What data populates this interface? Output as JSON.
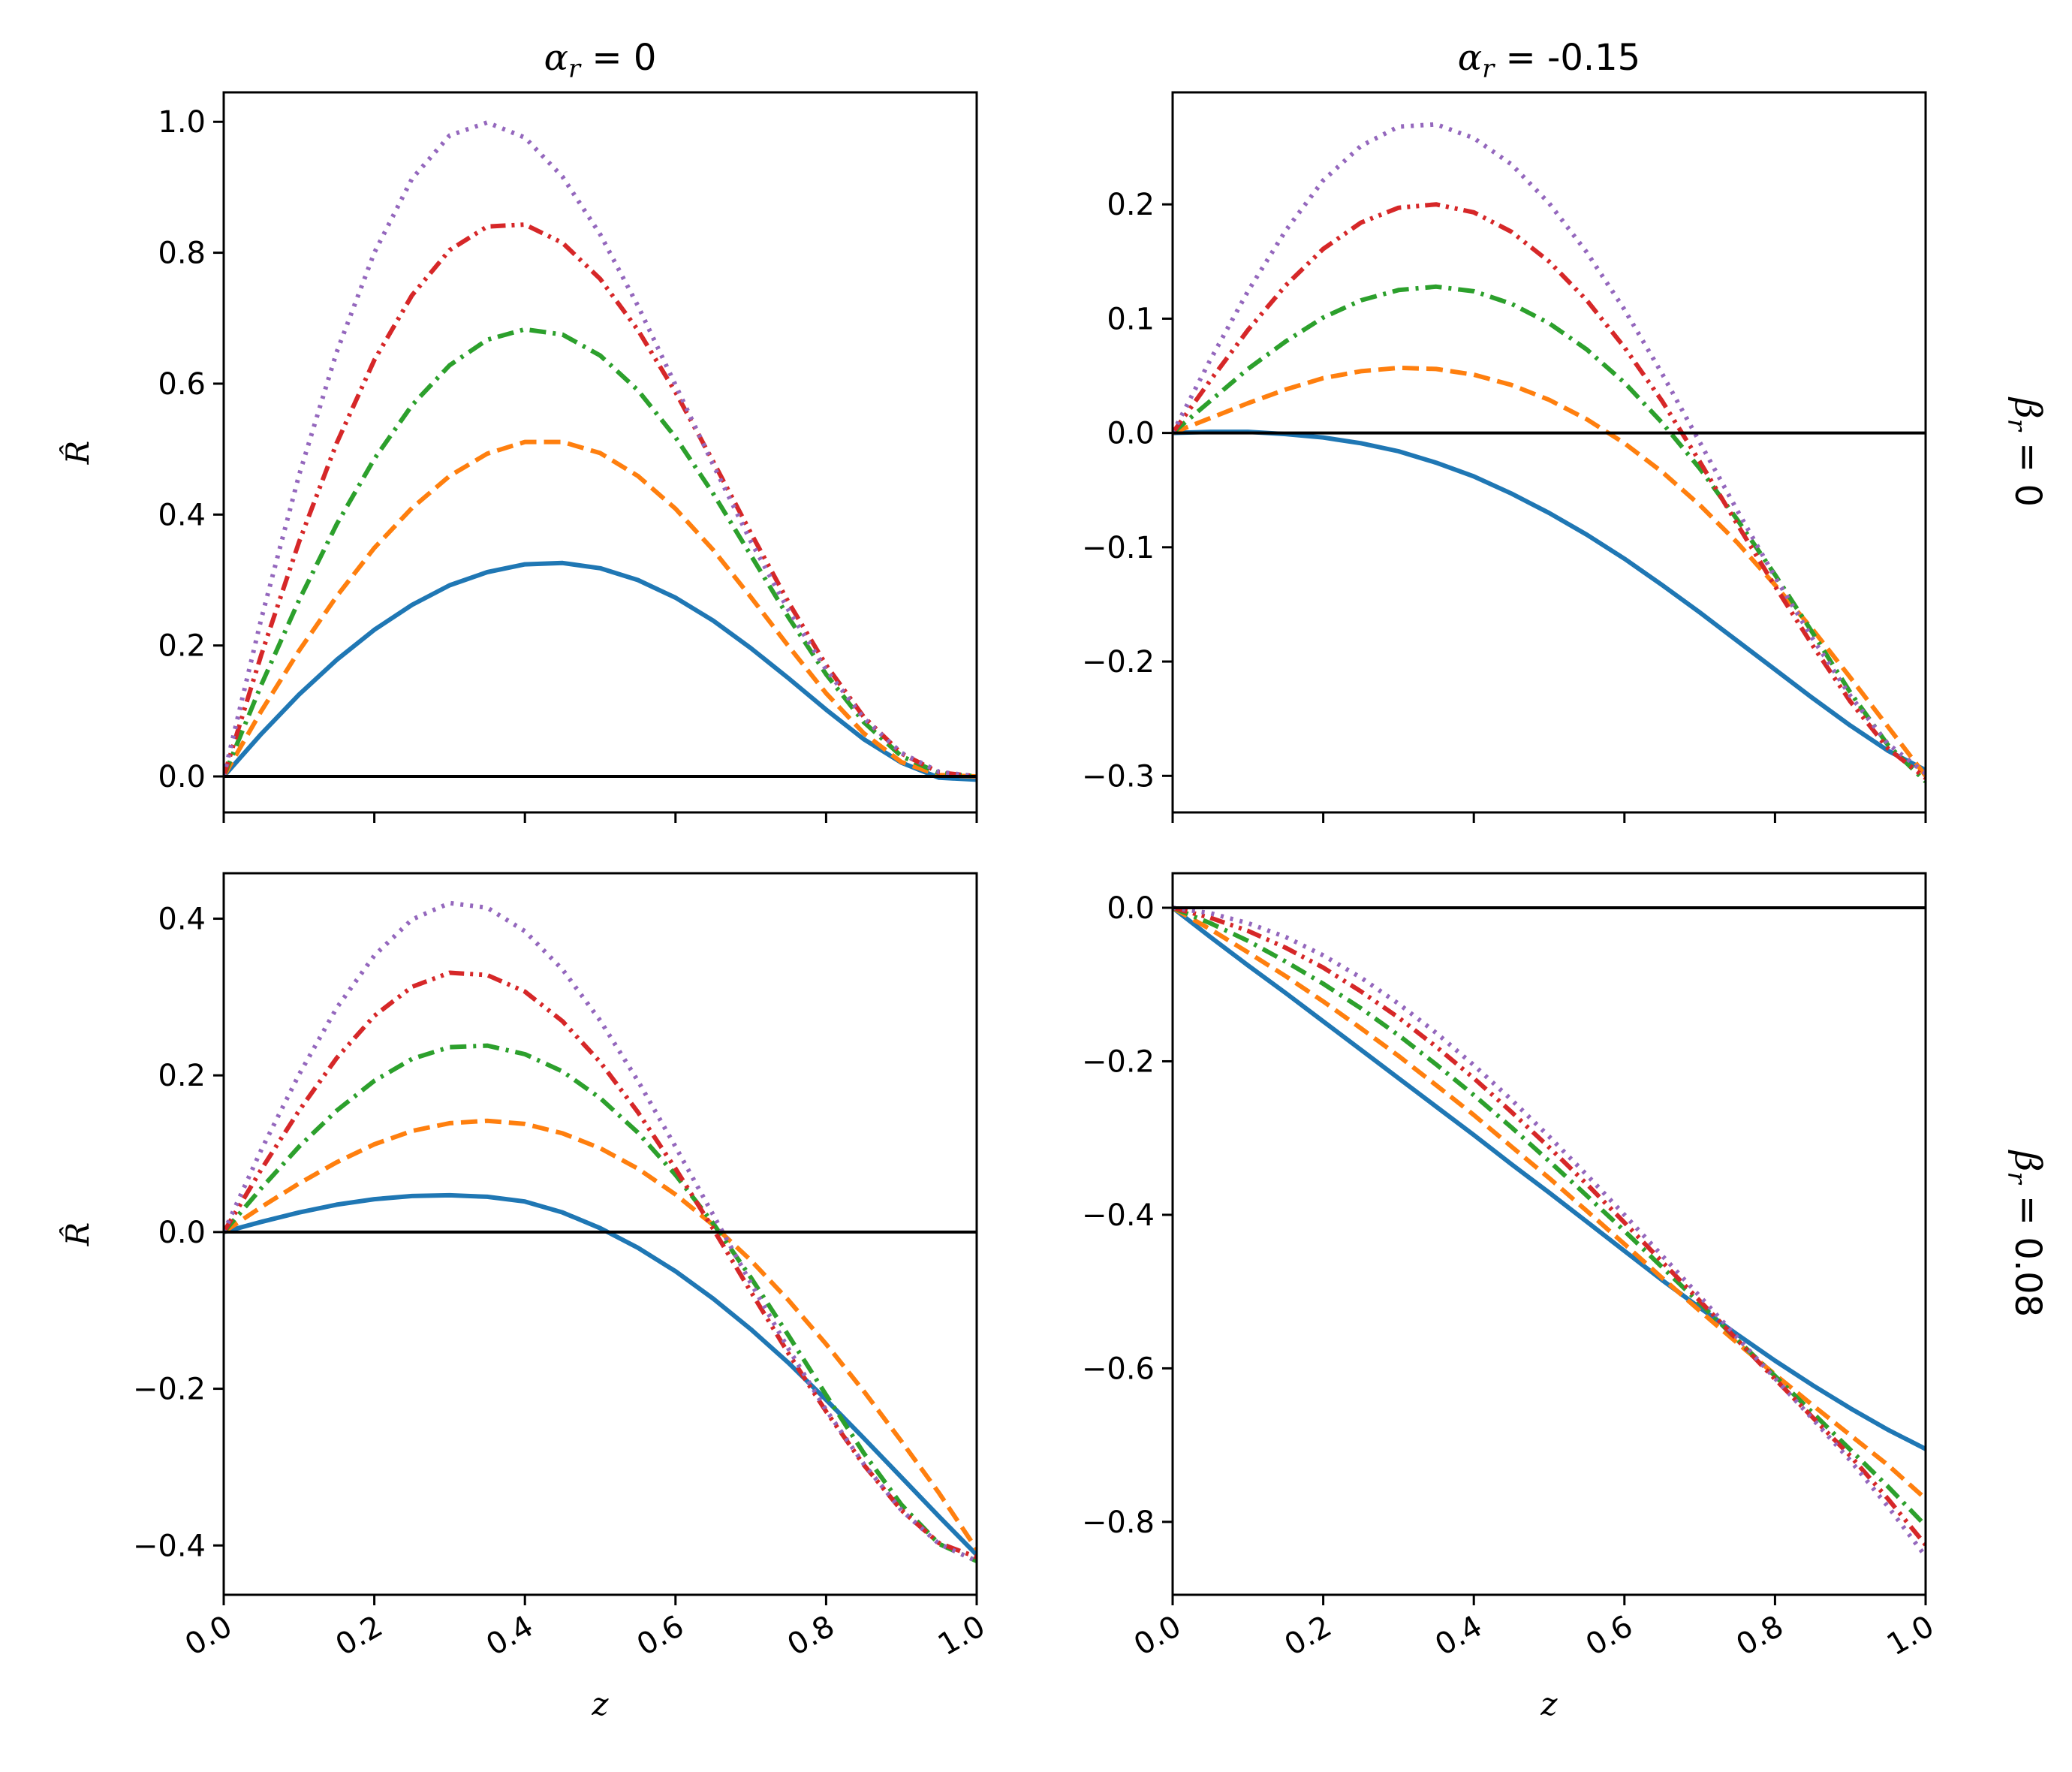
{
  "chart_data": [
    {
      "type": "line",
      "title": "α_r = 0",
      "title_parts": {
        "symbol": "α",
        "sub": "r",
        "rest": " = 0"
      },
      "xlabel": "z",
      "ylabel": "R̂",
      "xlim": [
        0,
        1
      ],
      "ylim": [
        -0.055,
        1.045
      ],
      "xticks": [
        "",
        "",
        "",
        "",
        "",
        ""
      ],
      "yticks": [
        0.0,
        0.2,
        0.4,
        0.6,
        0.8,
        1.0
      ],
      "ytick_labels": [
        "0.0",
        "0.2",
        "0.4",
        "0.6",
        "0.8",
        "1.0"
      ],
      "zero_line": true,
      "x": [
        0.0,
        0.05,
        0.1,
        0.15,
        0.2,
        0.25,
        0.3,
        0.35,
        0.4,
        0.45,
        0.5,
        0.55,
        0.6,
        0.65,
        0.7,
        0.75,
        0.8,
        0.85,
        0.9,
        0.95,
        1.0
      ],
      "series": [
        {
          "style": "solid",
          "color": "#1f77b4",
          "values": [
            0.0,
            0.065,
            0.125,
            0.178,
            0.224,
            0.262,
            0.292,
            0.312,
            0.324,
            0.326,
            0.318,
            0.3,
            0.273,
            0.238,
            0.196,
            0.15,
            0.102,
            0.057,
            0.021,
            -0.002,
            -0.005
          ]
        },
        {
          "style": "dashed",
          "color": "#ff7f0e",
          "values": [
            0.0,
            0.1,
            0.192,
            0.275,
            0.349,
            0.41,
            0.459,
            0.493,
            0.511,
            0.511,
            0.494,
            0.459,
            0.409,
            0.346,
            0.274,
            0.199,
            0.127,
            0.066,
            0.022,
            0.002,
            0.0
          ]
        },
        {
          "style": "dashdot",
          "color": "#2ca02c",
          "values": [
            0.0,
            0.14,
            0.269,
            0.385,
            0.485,
            0.567,
            0.628,
            0.667,
            0.683,
            0.675,
            0.643,
            0.59,
            0.518,
            0.432,
            0.338,
            0.243,
            0.156,
            0.083,
            0.031,
            0.005,
            0.0
          ]
        },
        {
          "style": "dashdotdot",
          "color": "#d62728",
          "values": [
            0.0,
            0.186,
            0.358,
            0.509,
            0.636,
            0.735,
            0.804,
            0.84,
            0.843,
            0.815,
            0.76,
            0.682,
            0.587,
            0.481,
            0.372,
            0.266,
            0.17,
            0.091,
            0.035,
            0.006,
            0.0
          ]
        },
        {
          "style": "dotted",
          "color": "#9467bd",
          "values": [
            0.0,
            0.241,
            0.46,
            0.648,
            0.8,
            0.913,
            0.979,
            0.999,
            0.976,
            0.916,
            0.828,
            0.719,
            0.598,
            0.476,
            0.359,
            0.254,
            0.163,
            0.089,
            0.036,
            0.007,
            0.0
          ]
        }
      ]
    },
    {
      "type": "line",
      "title": "α_r = -0.15",
      "title_parts": {
        "symbol": "α",
        "sub": "r",
        "rest": " = -0.15"
      },
      "xlabel": "",
      "ylabel": "",
      "xlim": [
        0,
        1
      ],
      "ylim": [
        -0.332,
        0.298
      ],
      "xticks": [
        "",
        "",
        "",
        "",
        "",
        ""
      ],
      "yticks": [
        -0.3,
        -0.2,
        -0.1,
        0.0,
        0.1,
        0.2
      ],
      "ytick_labels": [
        "−0.3",
        "−0.2",
        "−0.1",
        "0.0",
        "0.1",
        "0.2"
      ],
      "zero_line": true,
      "row_label": "β_r = 0",
      "row_label_parts": {
        "symbol": "β",
        "sub": "r",
        "rest": " = 0"
      },
      "x": [
        0.0,
        0.05,
        0.1,
        0.15,
        0.2,
        0.25,
        0.3,
        0.35,
        0.4,
        0.45,
        0.5,
        0.55,
        0.6,
        0.65,
        0.7,
        0.75,
        0.8,
        0.85,
        0.9,
        0.95,
        1.0
      ],
      "series": [
        {
          "style": "solid",
          "color": "#1f77b4",
          "values": [
            0.0,
            0.001,
            0.001,
            -0.001,
            -0.004,
            -0.009,
            -0.016,
            -0.026,
            -0.038,
            -0.053,
            -0.07,
            -0.089,
            -0.11,
            -0.133,
            -0.157,
            -0.182,
            -0.207,
            -0.232,
            -0.256,
            -0.278,
            -0.295
          ]
        },
        {
          "style": "dashed",
          "color": "#ff7f0e",
          "values": [
            0.0,
            0.013,
            0.026,
            0.038,
            0.048,
            0.054,
            0.057,
            0.056,
            0.051,
            0.042,
            0.029,
            0.012,
            -0.009,
            -0.034,
            -0.063,
            -0.096,
            -0.133,
            -0.172,
            -0.214,
            -0.257,
            -0.3
          ]
        },
        {
          "style": "dashdot",
          "color": "#2ca02c",
          "values": [
            0.0,
            0.028,
            0.056,
            0.08,
            0.101,
            0.116,
            0.125,
            0.128,
            0.124,
            0.113,
            0.096,
            0.073,
            0.044,
            0.009,
            -0.031,
            -0.076,
            -0.124,
            -0.175,
            -0.227,
            -0.273,
            -0.305
          ]
        },
        {
          "style": "dashdotdot",
          "color": "#d62728",
          "values": [
            0.0,
            0.046,
            0.09,
            0.129,
            0.161,
            0.184,
            0.197,
            0.2,
            0.193,
            0.176,
            0.15,
            0.116,
            0.075,
            0.028,
            -0.025,
            -0.08,
            -0.134,
            -0.186,
            -0.235,
            -0.276,
            -0.302
          ]
        },
        {
          "style": "dotted",
          "color": "#9467bd",
          "values": [
            0.0,
            0.064,
            0.124,
            0.177,
            0.221,
            0.251,
            0.268,
            0.27,
            0.258,
            0.235,
            0.201,
            0.158,
            0.108,
            0.052,
            -0.008,
            -0.068,
            -0.126,
            -0.18,
            -0.23,
            -0.272,
            -0.298
          ]
        }
      ]
    },
    {
      "type": "line",
      "title": "",
      "xlabel": "z",
      "ylabel": "R̂",
      "xlim": [
        0,
        1
      ],
      "ylim": [
        -0.463,
        0.458
      ],
      "xticks": [
        "0.0",
        "0.2",
        "0.4",
        "0.6",
        "0.8",
        "1.0"
      ],
      "yticks": [
        -0.4,
        -0.2,
        0.0,
        0.2,
        0.4
      ],
      "ytick_labels": [
        "−0.4",
        "−0.2",
        "0.0",
        "0.2",
        "0.4"
      ],
      "zero_line": true,
      "x": [
        0.0,
        0.05,
        0.1,
        0.15,
        0.2,
        0.25,
        0.3,
        0.35,
        0.4,
        0.45,
        0.5,
        0.55,
        0.6,
        0.65,
        0.7,
        0.75,
        0.8,
        0.85,
        0.9,
        0.95,
        1.0
      ],
      "series": [
        {
          "style": "solid",
          "color": "#1f77b4",
          "values": [
            0.0,
            0.013,
            0.025,
            0.035,
            0.042,
            0.046,
            0.047,
            0.045,
            0.039,
            0.025,
            0.005,
            -0.02,
            -0.05,
            -0.085,
            -0.124,
            -0.167,
            -0.214,
            -0.263,
            -0.313,
            -0.363,
            -0.412
          ]
        },
        {
          "style": "dashed",
          "color": "#ff7f0e",
          "values": [
            0.0,
            0.032,
            0.062,
            0.089,
            0.112,
            0.129,
            0.139,
            0.142,
            0.138,
            0.126,
            0.107,
            0.081,
            0.048,
            0.009,
            -0.036,
            -0.087,
            -0.143,
            -0.203,
            -0.267,
            -0.333,
            -0.405
          ]
        },
        {
          "style": "dashdot",
          "color": "#2ca02c",
          "values": [
            0.0,
            0.056,
            0.109,
            0.155,
            0.193,
            0.221,
            0.236,
            0.238,
            0.227,
            0.205,
            0.171,
            0.127,
            0.073,
            0.011,
            -0.058,
            -0.132,
            -0.208,
            -0.282,
            -0.348,
            -0.398,
            -0.42
          ]
        },
        {
          "style": "dashdotdot",
          "color": "#d62728",
          "values": [
            0.0,
            0.08,
            0.155,
            0.222,
            0.276,
            0.313,
            0.331,
            0.328,
            0.307,
            0.269,
            0.217,
            0.153,
            0.081,
            0.004,
            -0.076,
            -0.155,
            -0.229,
            -0.297,
            -0.355,
            -0.397,
            -0.415
          ]
        },
        {
          "style": "dotted",
          "color": "#9467bd",
          "values": [
            0.0,
            0.105,
            0.201,
            0.286,
            0.353,
            0.399,
            0.42,
            0.414,
            0.384,
            0.335,
            0.27,
            0.193,
            0.109,
            0.022,
            -0.065,
            -0.149,
            -0.227,
            -0.296,
            -0.355,
            -0.398,
            -0.42
          ]
        }
      ]
    },
    {
      "type": "line",
      "title": "",
      "xlabel": "z",
      "ylabel": "",
      "xlim": [
        0,
        1
      ],
      "ylim": [
        -0.895,
        0.045
      ],
      "xticks": [
        "0.0",
        "0.2",
        "0.4",
        "0.6",
        "0.8",
        "1.0"
      ],
      "yticks": [
        -0.8,
        -0.6,
        -0.4,
        -0.2,
        0.0
      ],
      "ytick_labels": [
        "−0.8",
        "−0.6",
        "−0.4",
        "−0.2",
        "0.0"
      ],
      "zero_line": true,
      "row_label": "β_r = 0.08",
      "row_label_parts": {
        "symbol": "β",
        "sub": "r",
        "rest": " = 0.08"
      },
      "x": [
        0.0,
        0.05,
        0.1,
        0.15,
        0.2,
        0.25,
        0.3,
        0.35,
        0.4,
        0.45,
        0.5,
        0.55,
        0.6,
        0.65,
        0.7,
        0.75,
        0.8,
        0.85,
        0.9,
        0.95,
        1.0
      ],
      "series": [
        {
          "style": "solid",
          "color": "#1f77b4",
          "values": [
            0.0,
            -0.038,
            -0.075,
            -0.111,
            -0.148,
            -0.185,
            -0.222,
            -0.259,
            -0.296,
            -0.334,
            -0.371,
            -0.409,
            -0.447,
            -0.485,
            -0.521,
            -0.556,
            -0.59,
            -0.622,
            -0.652,
            -0.68,
            -0.705
          ]
        },
        {
          "style": "dashed",
          "color": "#ff7f0e",
          "values": [
            0.0,
            -0.028,
            -0.058,
            -0.089,
            -0.122,
            -0.157,
            -0.193,
            -0.231,
            -0.27,
            -0.311,
            -0.352,
            -0.395,
            -0.438,
            -0.482,
            -0.525,
            -0.567,
            -0.608,
            -0.648,
            -0.687,
            -0.726,
            -0.77
          ]
        },
        {
          "style": "dashdot",
          "color": "#2ca02c",
          "values": [
            0.0,
            -0.02,
            -0.043,
            -0.07,
            -0.099,
            -0.131,
            -0.166,
            -0.204,
            -0.244,
            -0.286,
            -0.33,
            -0.375,
            -0.421,
            -0.468,
            -0.515,
            -0.563,
            -0.61,
            -0.658,
            -0.706,
            -0.754,
            -0.805
          ]
        },
        {
          "style": "dashdotdot",
          "color": "#d62728",
          "values": [
            0.0,
            -0.013,
            -0.03,
            -0.052,
            -0.078,
            -0.109,
            -0.143,
            -0.181,
            -0.222,
            -0.266,
            -0.312,
            -0.36,
            -0.41,
            -0.461,
            -0.512,
            -0.563,
            -0.614,
            -0.664,
            -0.714,
            -0.77,
            -0.83
          ]
        },
        {
          "style": "dotted",
          "color": "#9467bd",
          "values": [
            0.0,
            -0.007,
            -0.02,
            -0.038,
            -0.062,
            -0.091,
            -0.125,
            -0.163,
            -0.205,
            -0.25,
            -0.298,
            -0.348,
            -0.4,
            -0.453,
            -0.506,
            -0.56,
            -0.613,
            -0.666,
            -0.72,
            -0.78,
            -0.845
          ]
        }
      ]
    }
  ]
}
